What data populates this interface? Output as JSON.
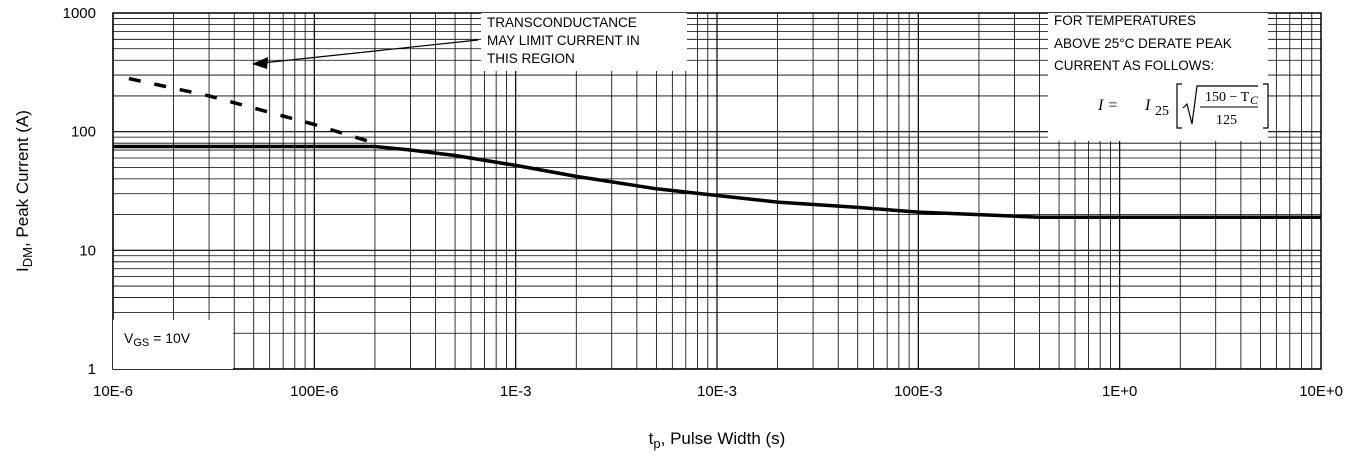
{
  "chart_data": {
    "type": "line",
    "xlabel_main": "t",
    "xlabel_sub": "p",
    "xlabel_rest": ", Pulse Width (s)",
    "ylabel_main": "I",
    "ylabel_sub": "DM",
    "ylabel_rest": ", Peak Current (A)",
    "x_scale": "log",
    "y_scale": "log",
    "xlim": [
      1e-05,
      10
    ],
    "ylim": [
      1,
      1000
    ],
    "grid": true,
    "x_ticks": [
      {
        "value": 1e-05,
        "label": "10E-6"
      },
      {
        "value": 0.0001,
        "label": "100E-6"
      },
      {
        "value": 0.001,
        "label": "1E-3"
      },
      {
        "value": 0.01,
        "label": "10E-3"
      },
      {
        "value": 0.1,
        "label": "100E-3"
      },
      {
        "value": 1,
        "label": "1E+0"
      },
      {
        "value": 10,
        "label": "10E+0"
      }
    ],
    "y_ticks": [
      {
        "value": 1,
        "label": "1"
      },
      {
        "value": 10,
        "label": "10"
      },
      {
        "value": 100,
        "label": "100"
      },
      {
        "value": 1000,
        "label": "1000"
      }
    ],
    "series": [
      {
        "style": "solid",
        "x": [
          1e-05,
          3e-05,
          0.0001,
          0.0002,
          0.0003,
          0.0005,
          0.001,
          0.002,
          0.005,
          0.01,
          0.02,
          0.05,
          0.1,
          0.2,
          0.4,
          1,
          10
        ],
        "y": [
          75,
          75,
          75,
          75,
          70,
          63,
          52,
          42,
          33,
          29,
          25.5,
          23,
          21,
          20,
          19,
          19,
          19
        ]
      },
      {
        "style": "dashed",
        "x": [
          1.2e-05,
          3e-05,
          0.0001,
          0.0002
        ],
        "y": [
          280,
          200,
          115,
          80
        ]
      }
    ],
    "annotations": {
      "transconductance": [
        "TRANSCONDUCTANCE",
        "MAY LIMIT CURRENT IN",
        "THIS REGION"
      ],
      "derate": [
        "FOR TEMPERATURES",
        "ABOVE 25°C DERATE PEAK",
        "CURRENT AS FOLLOWS:"
      ],
      "formula_lhs": "I  =",
      "formula_i": "I",
      "formula_sub": "25",
      "formula_num": "150 − T",
      "formula_num_sub": "C",
      "formula_den": "125",
      "vgs_main": "V",
      "vgs_sub": "GS",
      "vgs_rest": " = 10V"
    }
  }
}
